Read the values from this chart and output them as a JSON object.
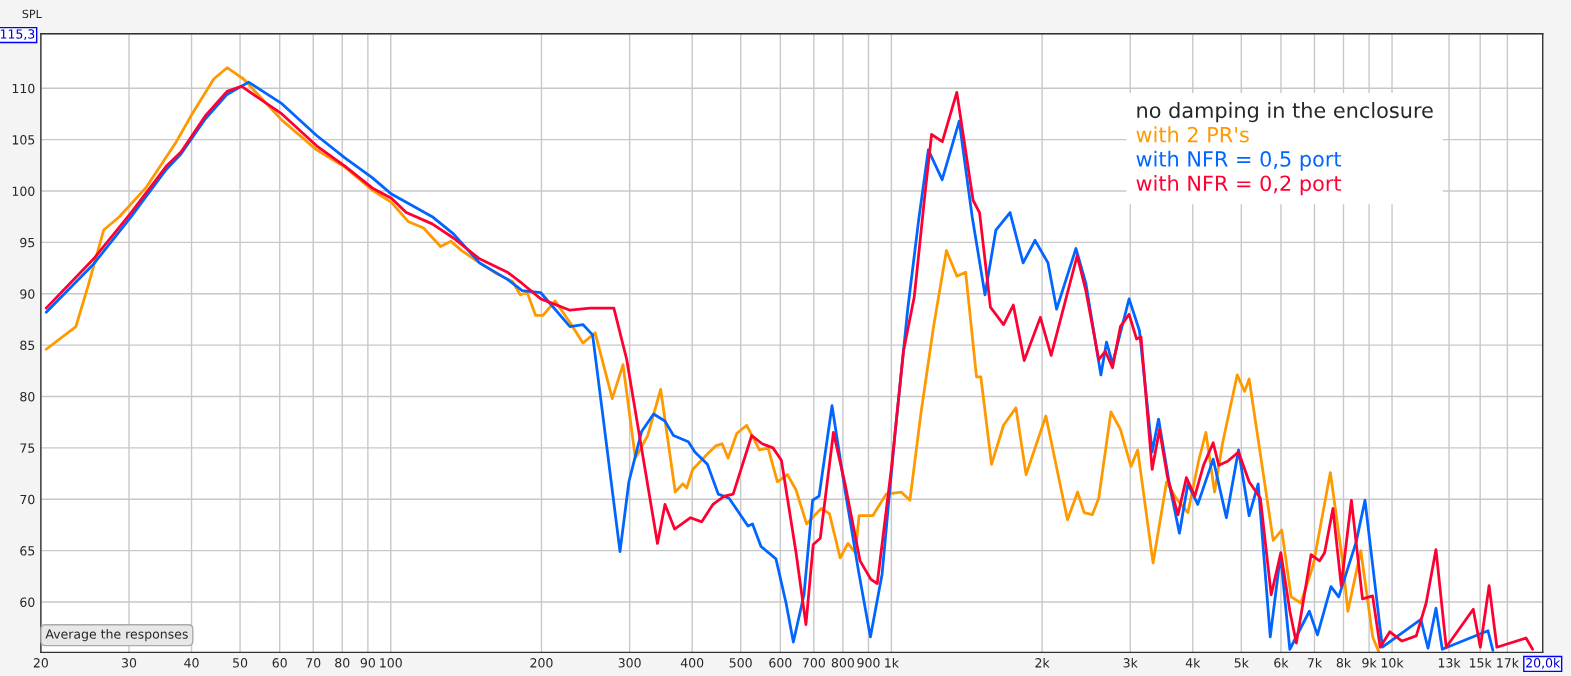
{
  "chart_data": {
    "type": "line",
    "ylabel": "SPL",
    "legend_title": "no damping in the enclosure",
    "log": "x",
    "xlim": [
      20,
      20000
    ],
    "ylim": [
      55.1,
      115.3
    ],
    "xticks": [
      20,
      30,
      40,
      50,
      60,
      70,
      80,
      90,
      100,
      200,
      300,
      400,
      500,
      600,
      700,
      800,
      900,
      {
        "value": 1000,
        "label": "1k"
      },
      {
        "value": 2000,
        "label": "2k"
      },
      {
        "value": 3000,
        "label": "3k"
      },
      {
        "value": 4000,
        "label": "4k"
      },
      {
        "value": 5000,
        "label": "5k"
      },
      {
        "value": 6000,
        "label": "6k"
      },
      {
        "value": 7000,
        "label": "7k"
      },
      {
        "value": 8000,
        "label": "8k"
      },
      {
        "value": 9000,
        "label": "9k"
      },
      {
        "value": 10000,
        "label": "10k"
      },
      {
        "value": 13000,
        "label": "13k"
      },
      {
        "value": 15000,
        "label": "15k"
      },
      {
        "value": 17000,
        "label": "17k"
      },
      {
        "value": 20000,
        "label": "20,0k"
      }
    ],
    "yticks": [
      60,
      65,
      70,
      75,
      80,
      85,
      90,
      95,
      100,
      105,
      110,
      {
        "value": 115.3,
        "label": "115,3"
      }
    ],
    "grid": true,
    "legend": "top right",
    "line_style": "solid",
    "marker": "none",
    "annotations": [
      "Average the responses"
    ],
    "series": [
      {
        "name": "with 2 PR's",
        "color": "#ff9900",
        "x": [
          20.5,
          23.5,
          24.9,
          26.7,
          28.7,
          32.4,
          37.3,
          40.1,
          44.3,
          47.1,
          50.8,
          55,
          60.6,
          71.1,
          81.1,
          91.8,
          100.3,
          108.5,
          116.3,
          125.7,
          131.9,
          138.6,
          150.4,
          163.5,
          175,
          181.4,
          187.4,
          194.6,
          201.4,
          213,
          228,
          242,
          256,
          277,
          291,
          308,
          326,
          346,
          370,
          383,
          390,
          401,
          425,
          446,
          459,
          472,
          491,
          514,
          545,
          567,
          592,
          620,
          645,
          677,
          724,
          752,
          790,
          819,
          847,
          862,
          918,
          976,
          1046,
          1089,
          1145,
          1214,
          1288,
          1352,
          1407,
          1479,
          1509,
          1585,
          1675,
          1773,
          1858,
          2035,
          2248,
          2355,
          2427,
          2520,
          2595,
          2745,
          2867,
          3010,
          3104,
          3332,
          3546,
          3703,
          3911,
          4107,
          4248,
          4421,
          4584,
          4906,
          5075,
          5183,
          5790,
          6022,
          6289,
          6574,
          6960,
          7530,
          7965,
          8163,
          8663,
          9150,
          9400
        ],
        "values": [
          84.6,
          86.8,
          90.9,
          96.2,
          97.5,
          100.3,
          104.8,
          107.5,
          110.9,
          112,
          110.9,
          109.1,
          106.9,
          104,
          102.3,
          100.1,
          98.9,
          97,
          96.4,
          94.6,
          95.1,
          94.2,
          93,
          91.9,
          91.2,
          89.9,
          90.1,
          87.9,
          87.9,
          89.3,
          87.2,
          85.2,
          86.2,
          79.8,
          83.1,
          74,
          76.2,
          80.7,
          70.7,
          71.5,
          71.1,
          72.9,
          74.2,
          75.2,
          75.4,
          74,
          76.4,
          77.2,
          74.8,
          75,
          71.7,
          72.4,
          70.9,
          67.6,
          69.1,
          68.6,
          64.3,
          65.7,
          64.8,
          68.4,
          68.4,
          70.5,
          70.7,
          69.9,
          78.3,
          86.8,
          94.2,
          91.7,
          92.1,
          81.9,
          81.9,
          73.4,
          77.2,
          78.9,
          72.4,
          78.1,
          68,
          70.7,
          68.7,
          68.5,
          70.1,
          78.5,
          76.8,
          73.2,
          74.8,
          63.8,
          71.7,
          70.1,
          68.7,
          73.7,
          76.5,
          70.7,
          75.4,
          82.1,
          80.5,
          81.7,
          66,
          67,
          60.5,
          59.9,
          63.6,
          72.6,
          64,
          59.1,
          65,
          56.6,
          55.2
        ]
      },
      {
        "name": "with NFR = 0,5 port",
        "color": "#0066ff",
        "x": [
          20.5,
          25.5,
          30.3,
          35.6,
          38.1,
          42.6,
          47.1,
          52,
          60.6,
          71.1,
          81.1,
          91.8,
          100.3,
          107.4,
          121,
          133.6,
          150.4,
          171,
          183,
          199.4,
          228,
          242,
          253,
          265,
          287,
          299,
          317,
          335,
          353,
          367,
          393,
          405,
          429,
          451,
          474,
          517,
          528,
          549,
          588,
          616,
          637,
          669,
          696,
          717,
          761,
          808,
          859,
          908,
          958,
          1016,
          1078,
          1133,
          1185,
          1263,
          1366,
          1450,
          1538,
          1617,
          1726,
          1833,
          1936,
          2055,
          2138,
          2337,
          2446,
          2621,
          2690,
          2765,
          2984,
          3130,
          3318,
          3417,
          3597,
          3761,
          3911,
          4092,
          4393,
          4668,
          4936,
          5183,
          5403,
          5712,
          5987,
          6250,
          6837,
          7097,
          7552,
          7826,
          8476,
          8830,
          9566,
          11420,
          11800,
          12240,
          12600,
          15550,
          15900
        ],
        "values": [
          88.2,
          92.9,
          97.5,
          102.1,
          103.6,
          107,
          109.4,
          110.6,
          108.5,
          105.4,
          103.2,
          101.3,
          99.7,
          98.9,
          97.5,
          95.8,
          93,
          91.4,
          90.3,
          90.1,
          86.8,
          87,
          86,
          78.3,
          64.9,
          71.7,
          76.6,
          78.3,
          77.6,
          76.2,
          75.6,
          74.6,
          73.4,
          70.5,
          70.1,
          67.4,
          67.6,
          65.4,
          64.2,
          59.9,
          56.1,
          60.7,
          69.9,
          70.3,
          79.1,
          70.9,
          63.1,
          56.6,
          62.7,
          76.2,
          88.5,
          97.1,
          104,
          101.1,
          106.8,
          97.5,
          89.9,
          96.2,
          97.9,
          93,
          95.2,
          93,
          88.5,
          94.4,
          91,
          82.1,
          85.3,
          83.2,
          89.5,
          86.4,
          74.6,
          77.8,
          71.3,
          66.7,
          71.5,
          69.5,
          73.9,
          68.2,
          74.8,
          68.4,
          71.5,
          56.6,
          64.6,
          55.4,
          59.1,
          56.8,
          61.5,
          60.5,
          65.8,
          69.9,
          55.6,
          58.3,
          55.5,
          59.4,
          55.4,
          57.2,
          55.3
        ]
      },
      {
        "name": "with NFR = 0,2 port",
        "color": "#ff0033",
        "x": [
          20.5,
          25.5,
          30.3,
          35.6,
          38.1,
          42.6,
          47.1,
          50.3,
          60.6,
          71.1,
          81.1,
          91.8,
          100.3,
          107.4,
          121,
          133.6,
          150.4,
          171,
          183,
          199.4,
          228,
          250,
          279,
          296,
          341,
          353,
          369,
          397,
          418,
          440,
          464,
          483,
          526,
          552,
          580,
          603,
          645,
          675,
          698,
          721,
          766,
          808,
          866,
          910,
          937,
          1000,
          1057,
          1111,
          1168,
          1203,
          1264,
          1351,
          1456,
          1500,
          1577,
          1675,
          1752,
          1842,
          1984,
          2085,
          2350,
          2446,
          2595,
          2675,
          2765,
          2867,
          2984,
          3088,
          3152,
          3318,
          3431,
          3562,
          3737,
          3884,
          4037,
          4202,
          4393,
          4508,
          4696,
          4936,
          5183,
          5458,
          5737,
          5997,
          6251,
          6440,
          6891,
          7164,
          7334,
          7621,
          7916,
          8296,
          8729,
          9146,
          9470,
          9901,
          10470,
          11180,
          11700,
          12240,
          12830,
          14530,
          15010,
          15630,
          16200,
          18520,
          19090
        ],
        "values": [
          88.6,
          93.4,
          97.9,
          102.4,
          103.8,
          107.3,
          109.7,
          110.2,
          107.5,
          104.4,
          102.4,
          100.3,
          99.3,
          97.9,
          96.8,
          95.4,
          93.4,
          92.1,
          91,
          89.5,
          88.4,
          88.6,
          88.6,
          83.6,
          65.7,
          69.5,
          67.1,
          68.2,
          67.8,
          69.5,
          70.3,
          70.5,
          76.2,
          75.4,
          75,
          73.8,
          64.8,
          57.8,
          65.6,
          66.2,
          76.5,
          71.5,
          64,
          62.2,
          61.8,
          73,
          84.4,
          89.7,
          99.9,
          105.5,
          104.8,
          109.6,
          99.1,
          97.9,
          88.7,
          87,
          88.9,
          83.5,
          87.7,
          84,
          93.7,
          90.3,
          83.6,
          84.4,
          82.8,
          86.8,
          88,
          85.6,
          85.8,
          72.9,
          76.8,
          72.1,
          68.5,
          72.1,
          70.3,
          73.3,
          75.5,
          73.3,
          73.7,
          74.6,
          71.7,
          70.1,
          60.7,
          64.8,
          59.1,
          56,
          64.6,
          64,
          64.8,
          69.1,
          61.6,
          69.9,
          60.3,
          60.6,
          55.6,
          57.1,
          56.2,
          56.7,
          59.9,
          65.1,
          55.6,
          59.3,
          55.6,
          61.6,
          55.6,
          56.5,
          55.4
        ]
      }
    ]
  }
}
